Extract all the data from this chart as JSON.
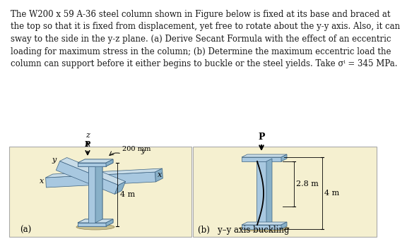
{
  "background_color": "#ffffff",
  "text_lines": [
    "The W200 x 59 A-36 steel column shown in Figure below is fixed at its base and braced at",
    "the top so that it is fixed from displacement, yet free to rotate about the y-y axis. Also, it can",
    "sway to the side in the y-z plane. (a) Derive Secant Formula with the effect of an eccentric",
    "loading for maximum stress in the column; (b) Determine the maximum eccentric load the",
    "column can support before it either begins to buckle or the steel yields. Take σⁱ = 345 MPa."
  ],
  "text_fontsize": 8.5,
  "text_color": "#1a1a1a",
  "panel_bg": "#f5f0d0",
  "panel_border": "#aaaaaa",
  "col_light": "#a8c8e0",
  "col_mid": "#88b0c8",
  "col_dark": "#6898b0",
  "col_top_face": "#c8dce8",
  "base_color": "#c8c090",
  "label_a": "(a)",
  "label_b": "(b)   y–y axis buckling",
  "label_P": "P",
  "label_z": "z",
  "label_x": "x",
  "label_y": "y",
  "label_200mm": "200 mm",
  "label_4m_a": "4 m",
  "label_28m": "2.8 m",
  "label_4m_b": "4 m"
}
